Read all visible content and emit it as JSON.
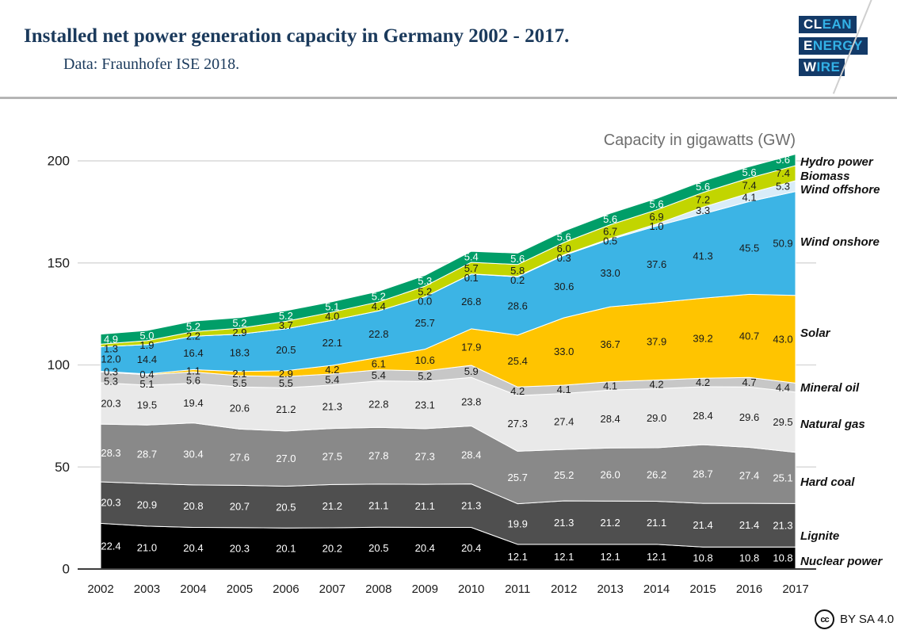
{
  "header": {
    "title": "Installed net power generation capacity in Germany 2002 - 2017.",
    "subtitle": "Data: Fraunhofer ISE 2018.",
    "logo_rows": [
      {
        "white": "CL",
        "cyan": "EAN"
      },
      {
        "white": "E",
        "cyan": "NERGY"
      },
      {
        "white": "W",
        "cyan": "IRE"
      }
    ],
    "logo_colors": {
      "navy": "#133a68",
      "cyan": "#33b1e6"
    }
  },
  "chart_data": {
    "type": "area",
    "stacked": true,
    "title": "Capacity in gigawatts (GW)",
    "x": [
      2002,
      2003,
      2004,
      2005,
      2006,
      2007,
      2008,
      2009,
      2010,
      2011,
      2012,
      2013,
      2014,
      2015,
      2016,
      2017
    ],
    "ylim": [
      0,
      200
    ],
    "yticks": [
      0,
      50,
      100,
      150,
      200
    ],
    "grid": true,
    "legend_position": "right",
    "legend": [
      "Hydro power",
      "Biomass",
      "Wind offshore",
      "Wind onshore",
      "Solar",
      "Mineral oil",
      "Natural gas",
      "Hard coal",
      "Lignite",
      "Nuclear power"
    ],
    "series": [
      {
        "name": "Nuclear power",
        "color": "#000000",
        "label_color": "#ffffff",
        "values": [
          22.4,
          21.0,
          20.4,
          20.3,
          20.1,
          20.2,
          20.5,
          20.4,
          20.4,
          12.1,
          12.1,
          12.1,
          12.1,
          10.8,
          10.8,
          10.8
        ]
      },
      {
        "name": "Lignite",
        "color": "#4f4f4f",
        "label_color": "#ffffff",
        "values": [
          20.3,
          20.9,
          20.8,
          20.7,
          20.5,
          21.2,
          21.1,
          21.1,
          21.3,
          19.9,
          21.3,
          21.2,
          21.1,
          21.4,
          21.4,
          21.3
        ]
      },
      {
        "name": "Hard coal",
        "color": "#898989",
        "label_color": "#ffffff",
        "values": [
          28.3,
          28.7,
          30.4,
          27.6,
          27.0,
          27.5,
          27.8,
          27.3,
          28.4,
          25.7,
          25.2,
          26.0,
          26.2,
          28.7,
          27.4,
          25.1
        ]
      },
      {
        "name": "Natural gas",
        "color": "#e9e9e9",
        "label_color": "#1a1a1a",
        "values": [
          20.3,
          19.5,
          19.4,
          20.6,
          21.2,
          21.3,
          22.8,
          23.1,
          23.8,
          27.3,
          27.4,
          28.4,
          29.0,
          28.4,
          29.6,
          29.5
        ]
      },
      {
        "name": "Mineral oil",
        "color": "#c7c7c7",
        "label_color": "#1a1a1a",
        "values": [
          5.3,
          5.1,
          5.6,
          5.5,
          5.5,
          5.4,
          5.4,
          5.2,
          5.9,
          4.2,
          4.1,
          4.1,
          4.2,
          4.2,
          4.7,
          4.4
        ]
      },
      {
        "name": "Solar",
        "color": "#ffc400",
        "label_color": "#1a1a1a",
        "values": [
          0.3,
          0.4,
          1.1,
          2.1,
          2.9,
          4.2,
          6.1,
          10.6,
          17.9,
          25.4,
          33.0,
          36.7,
          37.9,
          39.2,
          40.7,
          43.0
        ]
      },
      {
        "name": "Wind onshore",
        "color": "#3cb4e5",
        "label_color": "#1a1a1a",
        "values": [
          12.0,
          14.4,
          16.4,
          18.3,
          20.5,
          22.1,
          22.8,
          25.7,
          26.8,
          28.6,
          30.6,
          33.0,
          37.6,
          41.3,
          45.5,
          50.9
        ]
      },
      {
        "name": "Wind offshore",
        "color": "#d9ecf8",
        "label_color": "#1a1a1a",
        "values": [
          0,
          0,
          0,
          0,
          0,
          0,
          0,
          0.0,
          0.1,
          0.2,
          0.3,
          0.5,
          1.0,
          3.3,
          4.1,
          5.3
        ],
        "labels": [
          "",
          "",
          "",
          "",
          "",
          "",
          "",
          "0.0",
          "0.1",
          "0.2",
          "0.3",
          "0.5",
          "1.0",
          "3.3",
          "4.1",
          "5.3"
        ]
      },
      {
        "name": "Biomass",
        "color": "#c2d500",
        "label_color": "#1a1a1a",
        "values": [
          1.3,
          1.9,
          2.2,
          2.9,
          3.7,
          4.0,
          4.4,
          5.2,
          5.7,
          5.8,
          6.0,
          6.7,
          6.9,
          7.2,
          7.4,
          7.4
        ]
      },
      {
        "name": "Hydro power",
        "color": "#009e68",
        "label_color": "#ffffff",
        "values": [
          4.9,
          5.0,
          5.2,
          5.2,
          5.2,
          5.1,
          5.2,
          5.3,
          5.4,
          5.6,
          5.6,
          5.6,
          5.6,
          5.6,
          5.6,
          5.6
        ]
      }
    ]
  },
  "footer": {
    "cc_icon_text": "cc",
    "license": "BY SA 4.0"
  }
}
